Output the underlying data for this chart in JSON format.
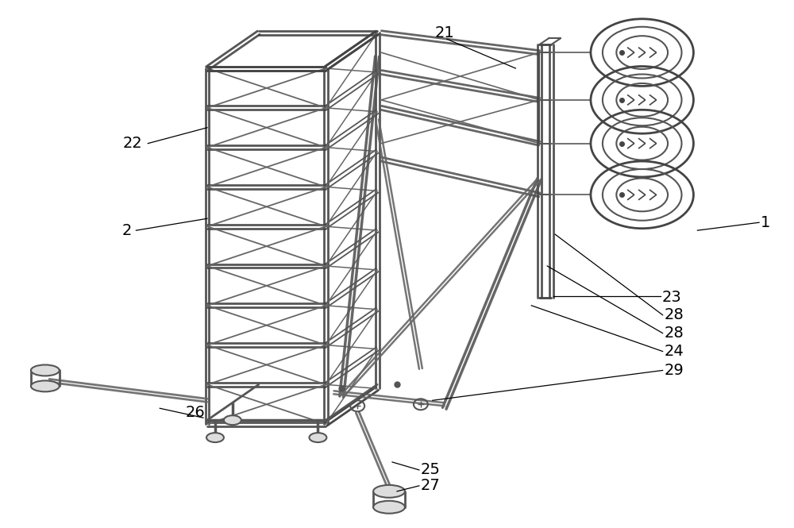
{
  "line_color": "#555555",
  "line_color_dark": "#333333",
  "line_color_light": "#999999",
  "label_fontsize": 14,
  "figsize": [
    10.0,
    6.65
  ],
  "dpi": 100
}
